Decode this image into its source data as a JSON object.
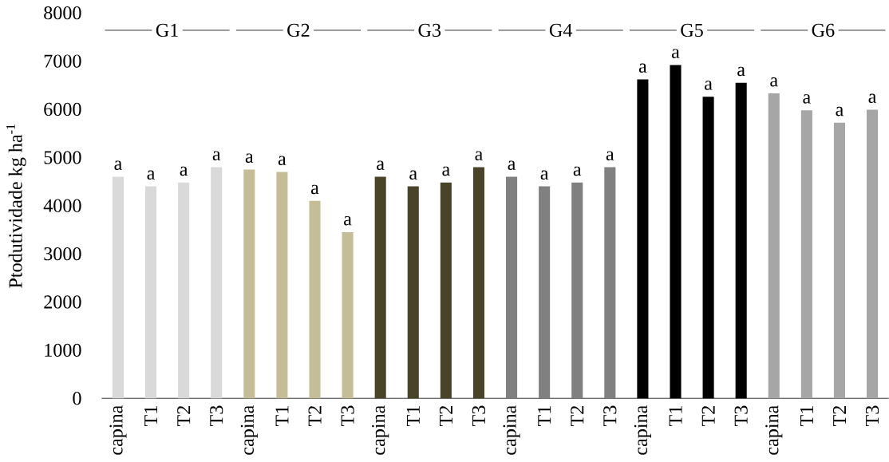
{
  "chart_data": {
    "type": "bar",
    "ylabel": "Ptodutividade kg ha$^{-1}$",
    "categories": [
      "capina",
      "T1",
      "T2",
      "T3",
      "capina",
      "T1",
      "T2",
      "T3",
      "capina",
      "T1",
      "T2",
      "T3",
      "capina",
      "T1",
      "T2",
      "T3",
      "capina",
      "T1",
      "T2",
      "T3",
      "capina",
      "T1",
      "T2",
      "T3"
    ],
    "values": [
      4600,
      4400,
      4480,
      4800,
      4750,
      4700,
      4100,
      3450,
      4600,
      4400,
      4480,
      4800,
      4600,
      4400,
      4480,
      4800,
      6620,
      6920,
      6260,
      6550,
      6330,
      5980,
      5720,
      5990
    ],
    "colors": [
      "#d9d9d9",
      "#d9d9d9",
      "#d9d9d9",
      "#d9d9d9",
      "#c4bd97",
      "#c4bd97",
      "#c4bd97",
      "#c4bd97",
      "#494429",
      "#494429",
      "#494429",
      "#494429",
      "#808080",
      "#808080",
      "#808080",
      "#808080",
      "#000000",
      "#000000",
      "#000000",
      "#000000",
      "#a6a6a6",
      "#a6a6a6",
      "#a6a6a6",
      "#a6a6a6"
    ],
    "value_labels": [
      "a",
      "a",
      "a",
      "a",
      "a",
      "a",
      "a",
      "a",
      "a",
      "a",
      "a",
      "a",
      "a",
      "a",
      "a",
      "a",
      "a",
      "a",
      "a",
      "a",
      "a",
      "a",
      "a",
      "a"
    ],
    "annotations": [
      "G1",
      "G2",
      "G3",
      "G4",
      "G5",
      "G6"
    ],
    "ylim": [
      0,
      8000
    ],
    "yticks": [
      0,
      1000,
      2000,
      3000,
      4000,
      5000,
      6000,
      7000,
      8000
    ]
  }
}
